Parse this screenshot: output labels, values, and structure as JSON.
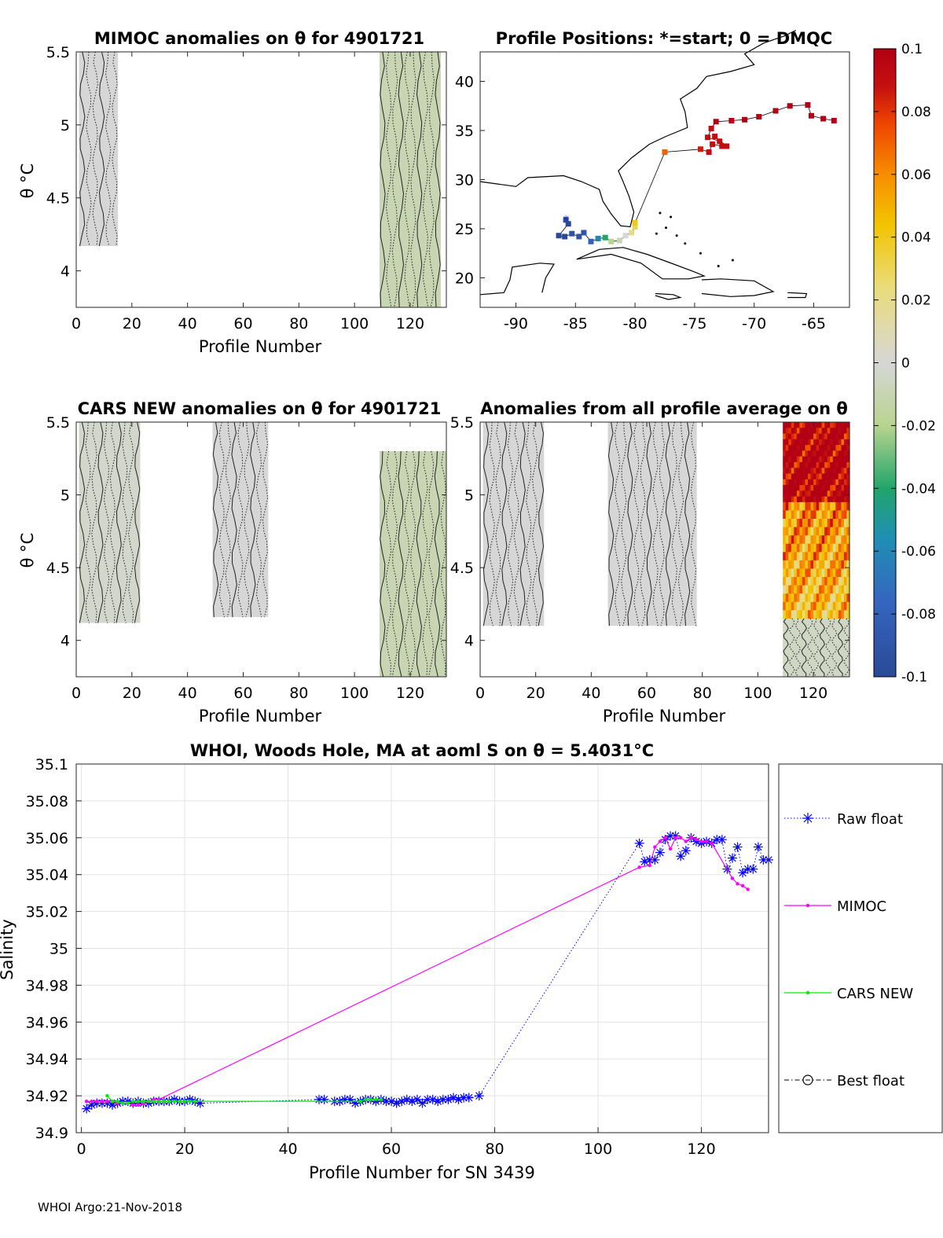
{
  "footer": "WHOI Argo:21-Nov-2018",
  "colorbar": {
    "ticks": [
      "0.1",
      "0.08",
      "0.06",
      "0.04",
      "0.02",
      "0",
      "-0.02",
      "-0.04",
      "-0.06",
      "-0.08",
      "-0.1"
    ],
    "range": [
      -0.1,
      0.1
    ]
  },
  "chart_data": [
    {
      "id": "mimoc",
      "type": "heatmap",
      "title": "MIMOC anomalies on θ  for 4901721",
      "xlabel": "Profile Number",
      "ylabel": "θ °C",
      "xlim": [
        0,
        133
      ],
      "ylim": [
        3.75,
        5.5
      ],
      "xticks": [
        "0",
        "20",
        "40",
        "60",
        "80",
        "100",
        "120"
      ],
      "yticks": [
        "4",
        "4.5",
        "5",
        "5.5"
      ],
      "blocks": [
        {
          "x": [
            1,
            15
          ],
          "yrange": [
            4.17,
            5.5
          ],
          "level": 0
        },
        {
          "x": [
            109,
            131
          ],
          "yrange": [
            3.75,
            5.5
          ],
          "level": -0.01
        }
      ]
    },
    {
      "id": "positions",
      "type": "scatter",
      "title": "Profile Positions: *=start; 0 = DMQC",
      "xlim": [
        -93,
        -62
      ],
      "ylim": [
        17,
        43
      ],
      "xticks": [
        "-90",
        "-85",
        "-80",
        "-75",
        "-70",
        "-65"
      ],
      "yticks": [
        "20",
        "25",
        "30",
        "35",
        "40"
      ],
      "points": [
        {
          "lon": -85.8,
          "lat": 25.9,
          "v": -0.1
        },
        {
          "lon": -85.6,
          "lat": 25.5,
          "v": -0.1
        },
        {
          "lon": -86.4,
          "lat": 24.3,
          "v": -0.1
        },
        {
          "lon": -85.9,
          "lat": 24.2,
          "v": -0.1
        },
        {
          "lon": -85.3,
          "lat": 24.5,
          "v": -0.09
        },
        {
          "lon": -84.7,
          "lat": 24.2,
          "v": -0.09
        },
        {
          "lon": -84.3,
          "lat": 24.6,
          "v": -0.09
        },
        {
          "lon": -83.7,
          "lat": 23.7,
          "v": -0.08
        },
        {
          "lon": -83.1,
          "lat": 24.0,
          "v": -0.06
        },
        {
          "lon": -82.5,
          "lat": 24.1,
          "v": -0.04
        },
        {
          "lon": -82.0,
          "lat": 23.7,
          "v": -0.02
        },
        {
          "lon": -81.3,
          "lat": 23.8,
          "v": -0.01
        },
        {
          "lon": -80.8,
          "lat": 24.3,
          "v": 0.0
        },
        {
          "lon": -80.3,
          "lat": 24.6,
          "v": 0.02
        },
        {
          "lon": -80.0,
          "lat": 25.2,
          "v": 0.03
        },
        {
          "lon": -80.0,
          "lat": 25.6,
          "v": 0.04
        },
        {
          "lon": -77.5,
          "lat": 32.8,
          "v": 0.07
        },
        {
          "lon": -74.5,
          "lat": 33.1,
          "v": 0.085
        },
        {
          "lon": -73.8,
          "lat": 32.8,
          "v": 0.09
        },
        {
          "lon": -73.5,
          "lat": 33.6,
          "v": 0.09
        },
        {
          "lon": -72.7,
          "lat": 33.4,
          "v": 0.09
        },
        {
          "lon": -72.3,
          "lat": 33.4,
          "v": 0.09
        },
        {
          "lon": -73.3,
          "lat": 34.4,
          "v": 0.09
        },
        {
          "lon": -72.9,
          "lat": 33.9,
          "v": 0.09
        },
        {
          "lon": -73.9,
          "lat": 34.3,
          "v": 0.09
        },
        {
          "lon": -73.6,
          "lat": 35.2,
          "v": 0.09
        },
        {
          "lon": -73.2,
          "lat": 35.9,
          "v": 0.1
        },
        {
          "lon": -71.9,
          "lat": 36.0,
          "v": 0.1
        },
        {
          "lon": -70.8,
          "lat": 36.1,
          "v": 0.1
        },
        {
          "lon": -69.6,
          "lat": 36.4,
          "v": 0.1
        },
        {
          "lon": -68.2,
          "lat": 37.0,
          "v": 0.1
        },
        {
          "lon": -67.0,
          "lat": 37.5,
          "v": 0.1
        },
        {
          "lon": -65.5,
          "lat": 37.6,
          "v": 0.1
        },
        {
          "lon": -65.2,
          "lat": 36.5,
          "v": 0.1
        },
        {
          "lon": -64.2,
          "lat": 36.2,
          "v": 0.1
        },
        {
          "lon": -63.3,
          "lat": 36.0,
          "v": 0.1
        }
      ],
      "start_marker": {
        "lon": -85.8,
        "lat": 26.1
      }
    },
    {
      "id": "cars",
      "type": "heatmap",
      "title": "CARS NEW anomalies on θ for 4901721",
      "xlabel": "Profile Number",
      "ylabel": "θ °C",
      "xlim": [
        0,
        133
      ],
      "ylim": [
        3.75,
        5.5
      ],
      "xticks": [
        "0",
        "20",
        "40",
        "60",
        "80",
        "100",
        "120"
      ],
      "yticks": [
        "4",
        "4.5",
        "5",
        "5.5"
      ],
      "blocks": [
        {
          "x": [
            1,
            23
          ],
          "yrange": [
            4.12,
            5.5
          ],
          "level": -0.003
        },
        {
          "x": [
            49,
            69
          ],
          "yrange": [
            4.16,
            5.5
          ],
          "level": 0
        },
        {
          "x": [
            109,
            133
          ],
          "yrange": [
            3.75,
            5.3
          ],
          "level": -0.01
        }
      ]
    },
    {
      "id": "allavg",
      "type": "heatmap",
      "title": "Anomalies from all profile average on θ",
      "xlabel": "Profile Number",
      "xlim": [
        0,
        133
      ],
      "ylim": [
        3.75,
        5.5
      ],
      "xticks": [
        "0",
        "20",
        "40",
        "60",
        "80",
        "100",
        "120"
      ],
      "yticks": [
        "4",
        "4.5",
        "5",
        "5.5"
      ],
      "blocks": [
        {
          "x": [
            1,
            23
          ],
          "yrange": [
            4.1,
            5.5
          ],
          "level": 0
        },
        {
          "x": [
            46,
            78
          ],
          "yrange": [
            4.1,
            5.5
          ],
          "level": 0
        },
        {
          "x": [
            109,
            133
          ],
          "yrange": [
            4.95,
            5.5
          ],
          "level": 0.1
        },
        {
          "x": [
            109,
            133
          ],
          "yrange": [
            4.15,
            4.95
          ],
          "level": 0.06
        },
        {
          "x": [
            109,
            133
          ],
          "yrange": [
            3.75,
            4.15
          ],
          "level": -0.005
        }
      ]
    },
    {
      "id": "salinity",
      "type": "line",
      "title": "WHOI, Woods Hole, MA at aoml S on θ = 5.4031°C",
      "xlabel": "Profile Number for SN 3439",
      "ylabel": "Salinity",
      "xlim": [
        -1,
        133
      ],
      "ylim": [
        34.9,
        35.1
      ],
      "xticks": [
        "0",
        "20",
        "40",
        "60",
        "80",
        "100",
        "120"
      ],
      "yticks": [
        "35.1",
        "35.08",
        "35.06",
        "35.04",
        "35.02",
        "35",
        "34.98",
        "34.96",
        "34.94",
        "34.92",
        "34.9"
      ],
      "grid": true,
      "legend_position": "outside-right",
      "series": [
        {
          "name": "Raw float",
          "color": "#0000ff",
          "x": [
            1,
            2,
            3,
            4,
            5,
            6,
            7,
            8,
            9,
            10,
            11,
            12,
            13,
            14,
            15,
            16,
            17,
            18,
            19,
            20,
            21,
            22,
            23,
            46,
            47,
            49,
            50,
            51,
            52,
            53,
            54,
            55,
            56,
            57,
            58,
            59,
            60,
            61,
            62,
            63,
            64,
            65,
            66,
            67,
            68,
            69,
            70,
            71,
            72,
            73,
            74,
            75,
            77,
            108,
            109,
            110,
            111,
            112,
            113,
            114,
            115,
            116,
            117,
            118,
            119,
            120,
            121,
            122,
            123,
            124,
            125,
            126,
            127,
            128,
            129,
            130,
            131,
            132,
            133
          ],
          "y": [
            34.913,
            34.915,
            34.916,
            34.916,
            34.916,
            34.915,
            34.916,
            34.917,
            34.917,
            34.916,
            34.917,
            34.916,
            34.916,
            34.917,
            34.917,
            34.917,
            34.917,
            34.918,
            34.917,
            34.917,
            34.918,
            34.917,
            34.916,
            34.918,
            34.918,
            34.917,
            34.917,
            34.918,
            34.918,
            34.916,
            34.917,
            34.918,
            34.918,
            34.917,
            34.918,
            34.917,
            34.917,
            34.916,
            34.917,
            34.918,
            34.917,
            34.918,
            34.916,
            34.918,
            34.918,
            34.917,
            34.918,
            34.918,
            34.919,
            34.918,
            34.919,
            34.919,
            34.92,
            35.057,
            35.047,
            35.048,
            35.048,
            35.052,
            35.059,
            35.061,
            35.061,
            35.05,
            35.053,
            35.06,
            35.058,
            35.057,
            35.058,
            35.057,
            35.059,
            35.059,
            35.043,
            35.049,
            35.055,
            35.041,
            35.043,
            35.043,
            35.055,
            35.048,
            35.048
          ]
        },
        {
          "name": "MIMOC",
          "color": "#ff00ff",
          "x": [
            1,
            2,
            3,
            4,
            5,
            6,
            7,
            8,
            9,
            10,
            11,
            12,
            13,
            14,
            15,
            108,
            110,
            111,
            112,
            113,
            114,
            115,
            116,
            117,
            118,
            119,
            120,
            121,
            122,
            126,
            127,
            128,
            129
          ],
          "y": [
            34.917,
            34.917,
            34.917,
            34.917,
            34.917,
            34.917,
            34.916,
            34.916,
            34.916,
            34.915,
            34.915,
            34.916,
            34.917,
            34.918,
            34.918,
            35.044,
            35.045,
            35.055,
            35.058,
            35.06,
            35.054,
            35.06,
            35.06,
            35.058,
            35.06,
            35.059,
            35.058,
            35.058,
            35.057,
            35.038,
            35.035,
            35.034,
            35.032
          ]
        },
        {
          "name": "CARS NEW",
          "color": "#00ee00",
          "x": [
            5,
            6,
            7,
            8,
            9,
            10,
            11,
            12,
            13,
            14,
            15,
            16,
            17,
            18,
            19,
            20,
            21,
            22,
            54,
            55,
            56,
            57,
            58
          ],
          "y": [
            34.92,
            34.917,
            34.917,
            34.916,
            34.916,
            34.917,
            34.917,
            34.917,
            34.917,
            34.917,
            34.917,
            34.917,
            34.917,
            34.917,
            34.917,
            34.917,
            34.917,
            34.917,
            34.917,
            34.918,
            34.918,
            34.918,
            34.918
          ]
        },
        {
          "name": "Best float",
          "color": "#000000",
          "x": [],
          "y": []
        }
      ]
    }
  ]
}
